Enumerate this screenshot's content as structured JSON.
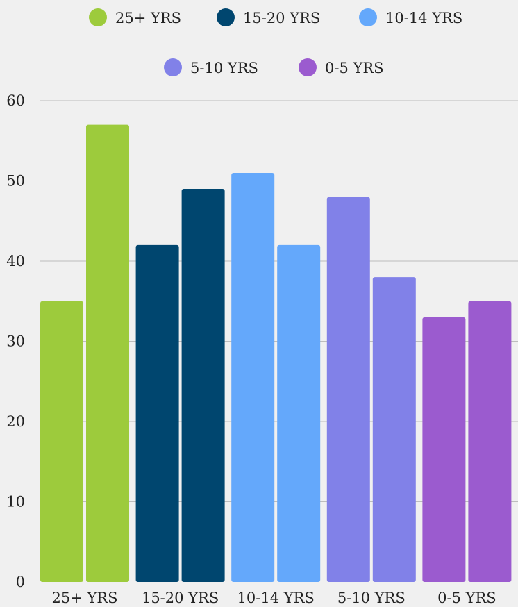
{
  "chart_data": {
    "type": "bar",
    "categories": [
      "25+ YRS",
      "15-20 YRS",
      "10-14 YRS",
      "5-10 YRS",
      "0-5 YRS"
    ],
    "series": [
      {
        "values": [
          35,
          42,
          51,
          48,
          33
        ]
      },
      {
        "values": [
          57,
          49,
          42,
          38,
          35
        ]
      }
    ],
    "category_colors": [
      "#9dcb3c",
      "#00466f",
      "#64a8fb",
      "#8181e8",
      "#9b5bcf"
    ],
    "legend": {
      "placement": "top",
      "entries": [
        {
          "label": "25+ YRS",
          "color": "#9dcb3c"
        },
        {
          "label": "15-20 YRS",
          "color": "#00466f"
        },
        {
          "label": "10-14 YRS",
          "color": "#64a8fb"
        },
        {
          "label": "5-10 YRS",
          "color": "#8181e8"
        },
        {
          "label": "0-5 YRS",
          "color": "#9b5bcf"
        }
      ]
    },
    "y_ticks": [
      "0",
      "10",
      "20",
      "30",
      "40",
      "50",
      "60"
    ],
    "ylim": [
      0,
      60
    ],
    "grid": true,
    "title": "",
    "xlabel": "",
    "ylabel": ""
  }
}
